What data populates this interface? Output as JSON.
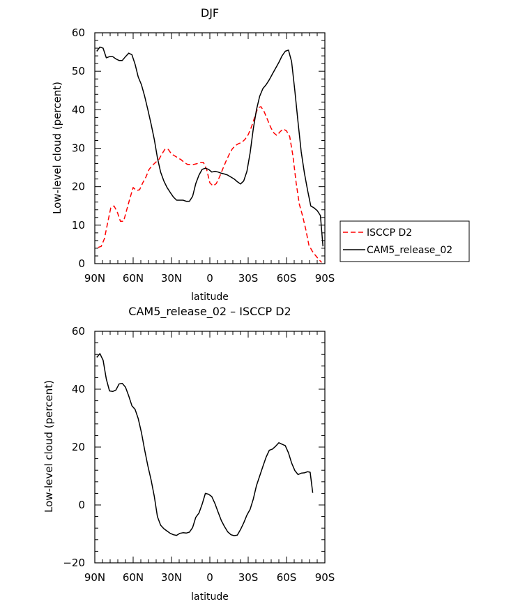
{
  "chart_data": [
    {
      "type": "line",
      "title": "DJF",
      "xlabel": "latitude",
      "ylabel": "Low-level cloud (percent)",
      "xlim": [
        -90,
        90
      ],
      "ylim": [
        0,
        60
      ],
      "x_ticks": [
        -90,
        -60,
        -30,
        0,
        30,
        60,
        90
      ],
      "x_tick_labels": [
        "90N",
        "60N",
        "30N",
        "0",
        "30S",
        "60S",
        "90S"
      ],
      "y_ticks": [
        0,
        10,
        20,
        30,
        40,
        50,
        60
      ],
      "y_tick_labels": [
        "0",
        "10",
        "20",
        "30",
        "40",
        "50",
        "60"
      ],
      "legend_position": "right",
      "series": [
        {
          "name": "ISCCP D2",
          "color": "#ff0000",
          "dash": "dashed",
          "points": [
            [
              -87.5,
              4.2
            ],
            [
              -85,
              4.5
            ],
            [
              -82.5,
              6.5
            ],
            [
              -80,
              10.5
            ],
            [
              -77.5,
              14.5
            ],
            [
              -75,
              15
            ],
            [
              -72.5,
              13.5
            ],
            [
              -70,
              11
            ],
            [
              -67.5,
              11
            ],
            [
              -65,
              14
            ],
            [
              -62.5,
              17
            ],
            [
              -60,
              19.8
            ],
            [
              -57.5,
              19
            ],
            [
              -55,
              19.2
            ],
            [
              -52.5,
              21
            ],
            [
              -50,
              22.5
            ],
            [
              -47.5,
              24.5
            ],
            [
              -45,
              25.5
            ],
            [
              -42.5,
              26.3
            ],
            [
              -40,
              27
            ],
            [
              -37.5,
              28.5
            ],
            [
              -35,
              29.8
            ],
            [
              -32.5,
              29.7
            ],
            [
              -30,
              28.5
            ],
            [
              -27.5,
              28
            ],
            [
              -25,
              27.5
            ],
            [
              -22.5,
              27
            ],
            [
              -20,
              26.3
            ],
            [
              -17.5,
              25.8
            ],
            [
              -15,
              25.8
            ],
            [
              -12.5,
              25.8
            ],
            [
              -10,
              26
            ],
            [
              -7.5,
              26.3
            ],
            [
              -5,
              26.3
            ],
            [
              -2.5,
              24.5
            ],
            [
              0,
              21
            ],
            [
              2.5,
              20.2
            ],
            [
              5,
              20.8
            ],
            [
              7.5,
              22.5
            ],
            [
              10,
              24.5
            ],
            [
              12.5,
              26.5
            ],
            [
              15,
              28.3
            ],
            [
              17.5,
              29.8
            ],
            [
              20,
              30.7
            ],
            [
              22.5,
              31.2
            ],
            [
              25,
              31.5
            ],
            [
              27.5,
              32.3
            ],
            [
              30,
              33.5
            ],
            [
              32.5,
              35.5
            ],
            [
              35,
              38
            ],
            [
              37.5,
              40.5
            ],
            [
              40,
              40.8
            ],
            [
              42.5,
              39.5
            ],
            [
              45,
              37.5
            ],
            [
              47.5,
              35.5
            ],
            [
              50,
              34
            ],
            [
              52.5,
              33.3
            ],
            [
              55,
              34.3
            ],
            [
              57.5,
              35
            ],
            [
              60,
              34.5
            ],
            [
              62.5,
              33
            ],
            [
              65,
              28
            ],
            [
              67.5,
              21
            ],
            [
              70,
              15.5
            ],
            [
              72.5,
              12.5
            ],
            [
              75,
              9
            ],
            [
              77.5,
              4.8
            ],
            [
              80,
              3.3
            ],
            [
              82.5,
              2.2
            ],
            [
              85,
              1.2
            ],
            [
              87.5,
              0.3
            ]
          ]
        },
        {
          "name": "CAM5_release_02",
          "color": "#000000",
          "dash": "solid",
          "points": [
            [
              -88.5,
              55.2
            ],
            [
              -86,
              56.3
            ],
            [
              -83.5,
              56
            ],
            [
              -81,
              53.5
            ],
            [
              -78.5,
              53.8
            ],
            [
              -76,
              53.8
            ],
            [
              -73.5,
              53.2
            ],
            [
              -71,
              52.8
            ],
            [
              -68.5,
              52.8
            ],
            [
              -66,
              53.8
            ],
            [
              -63.5,
              54.7
            ],
            [
              -61,
              54.3
            ],
            [
              -58.5,
              51.8
            ],
            [
              -56,
              48.5
            ],
            [
              -53.5,
              46.5
            ],
            [
              -51,
              43.5
            ],
            [
              -48.5,
              40
            ],
            [
              -46,
              36.3
            ],
            [
              -43.5,
              32.3
            ],
            [
              -41,
              27.5
            ],
            [
              -38.5,
              23.8
            ],
            [
              -36,
              21.5
            ],
            [
              -33.5,
              19.8
            ],
            [
              -31,
              18.5
            ],
            [
              -28.5,
              17.3
            ],
            [
              -26,
              16.5
            ],
            [
              -23.5,
              16.5
            ],
            [
              -21,
              16.5
            ],
            [
              -18.5,
              16.2
            ],
            [
              -16,
              16.2
            ],
            [
              -13.5,
              17.5
            ],
            [
              -11,
              20.8
            ],
            [
              -8.5,
              23
            ],
            [
              -6,
              24.5
            ],
            [
              -3.5,
              24.8
            ],
            [
              -1,
              24.5
            ],
            [
              1.5,
              23.8
            ],
            [
              4,
              24
            ],
            [
              6.5,
              23.8
            ],
            [
              9,
              23.5
            ],
            [
              11.5,
              23.3
            ],
            [
              14,
              23
            ],
            [
              16.5,
              22.5
            ],
            [
              19,
              22
            ],
            [
              21.5,
              21.3
            ],
            [
              24,
              20.7
            ],
            [
              26.5,
              21.5
            ],
            [
              29,
              24
            ],
            [
              31.5,
              28.8
            ],
            [
              34,
              35
            ],
            [
              36.5,
              40
            ],
            [
              39,
              43.5
            ],
            [
              41.5,
              45.5
            ],
            [
              44,
              46.5
            ],
            [
              46.5,
              47.8
            ],
            [
              49,
              49.3
            ],
            [
              51.5,
              50.8
            ],
            [
              54,
              52.3
            ],
            [
              56.5,
              54
            ],
            [
              59,
              55.2
            ],
            [
              61.5,
              55.5
            ],
            [
              64,
              52.5
            ],
            [
              66.5,
              45
            ],
            [
              69,
              36.8
            ],
            [
              71.5,
              29
            ],
            [
              74,
              23.5
            ],
            [
              76.5,
              19
            ],
            [
              79,
              15
            ],
            [
              81.5,
              14.5
            ],
            [
              84,
              13.8
            ],
            [
              86.5,
              12.5
            ],
            [
              88.5,
              4.5
            ]
          ]
        }
      ]
    },
    {
      "type": "line",
      "title": "CAM5_release_02 – ISCCP D2",
      "xlabel": "latitude",
      "ylabel": "Low-level cloud (percent)",
      "xlim": [
        -90,
        90
      ],
      "ylim": [
        -20,
        60
      ],
      "x_ticks": [
        -90,
        -60,
        -30,
        0,
        30,
        60,
        90
      ],
      "x_tick_labels": [
        "90N",
        "60N",
        "30N",
        "0",
        "30S",
        "60S",
        "90S"
      ],
      "y_ticks": [
        -20,
        0,
        20,
        40,
        60
      ],
      "y_tick_labels": [
        "−20",
        "0",
        "20",
        "40",
        "60"
      ],
      "series": [
        {
          "name": "CAM5_release_02 – ISCCP D2",
          "color": "#000000",
          "dash": "solid",
          "points": [
            [
              -88.5,
              51
            ],
            [
              -86,
              52.3
            ],
            [
              -83.5,
              50
            ],
            [
              -81,
              43.5
            ],
            [
              -78.5,
              39.4
            ],
            [
              -76,
              39.2
            ],
            [
              -73.5,
              39.7
            ],
            [
              -71,
              41.8
            ],
            [
              -68.5,
              42
            ],
            [
              -66,
              40.7
            ],
            [
              -63.5,
              37.7
            ],
            [
              -61,
              34.3
            ],
            [
              -58.5,
              33
            ],
            [
              -56,
              29.8
            ],
            [
              -53.5,
              25
            ],
            [
              -51,
              19
            ],
            [
              -48.5,
              13.5
            ],
            [
              -46,
              8.7
            ],
            [
              -43.5,
              3
            ],
            [
              -41,
              -4
            ],
            [
              -38.5,
              -7
            ],
            [
              -36,
              -8.2
            ],
            [
              -33.5,
              -9
            ],
            [
              -31,
              -9.8
            ],
            [
              -28.5,
              -10.3
            ],
            [
              -26,
              -10.5
            ],
            [
              -23.5,
              -9.8
            ],
            [
              -21,
              -9.6
            ],
            [
              -18.5,
              -9.7
            ],
            [
              -16,
              -9.4
            ],
            [
              -13.5,
              -7.8
            ],
            [
              -11,
              -4.3
            ],
            [
              -8.5,
              -2.8
            ],
            [
              -6,
              0.3
            ],
            [
              -3.5,
              4
            ],
            [
              -1,
              3.7
            ],
            [
              1.5,
              2.9
            ],
            [
              4,
              0.5
            ],
            [
              6.5,
              -2.5
            ],
            [
              9,
              -5.4
            ],
            [
              11.5,
              -7.5
            ],
            [
              14,
              -9.3
            ],
            [
              16.5,
              -10.3
            ],
            [
              19,
              -10.6
            ],
            [
              21.5,
              -10.4
            ],
            [
              24,
              -8.5
            ],
            [
              26.5,
              -6.2
            ],
            [
              29,
              -3.5
            ],
            [
              31.5,
              -1.5
            ],
            [
              34,
              2
            ],
            [
              36.5,
              6.7
            ],
            [
              39,
              10
            ],
            [
              41.5,
              13.3
            ],
            [
              44,
              16.5
            ],
            [
              46.5,
              18.9
            ],
            [
              49,
              19.3
            ],
            [
              51.5,
              20.3
            ],
            [
              54,
              21.5
            ],
            [
              56.5,
              21
            ],
            [
              59,
              20.5
            ],
            [
              61.5,
              18
            ],
            [
              64,
              14.5
            ],
            [
              66.5,
              11.9
            ],
            [
              69,
              10.5
            ],
            [
              71.5,
              11
            ],
            [
              74,
              11.1
            ],
            [
              76.5,
              11.5
            ],
            [
              78.5,
              11.3
            ],
            [
              80.5,
              4.2
            ]
          ]
        }
      ]
    }
  ]
}
